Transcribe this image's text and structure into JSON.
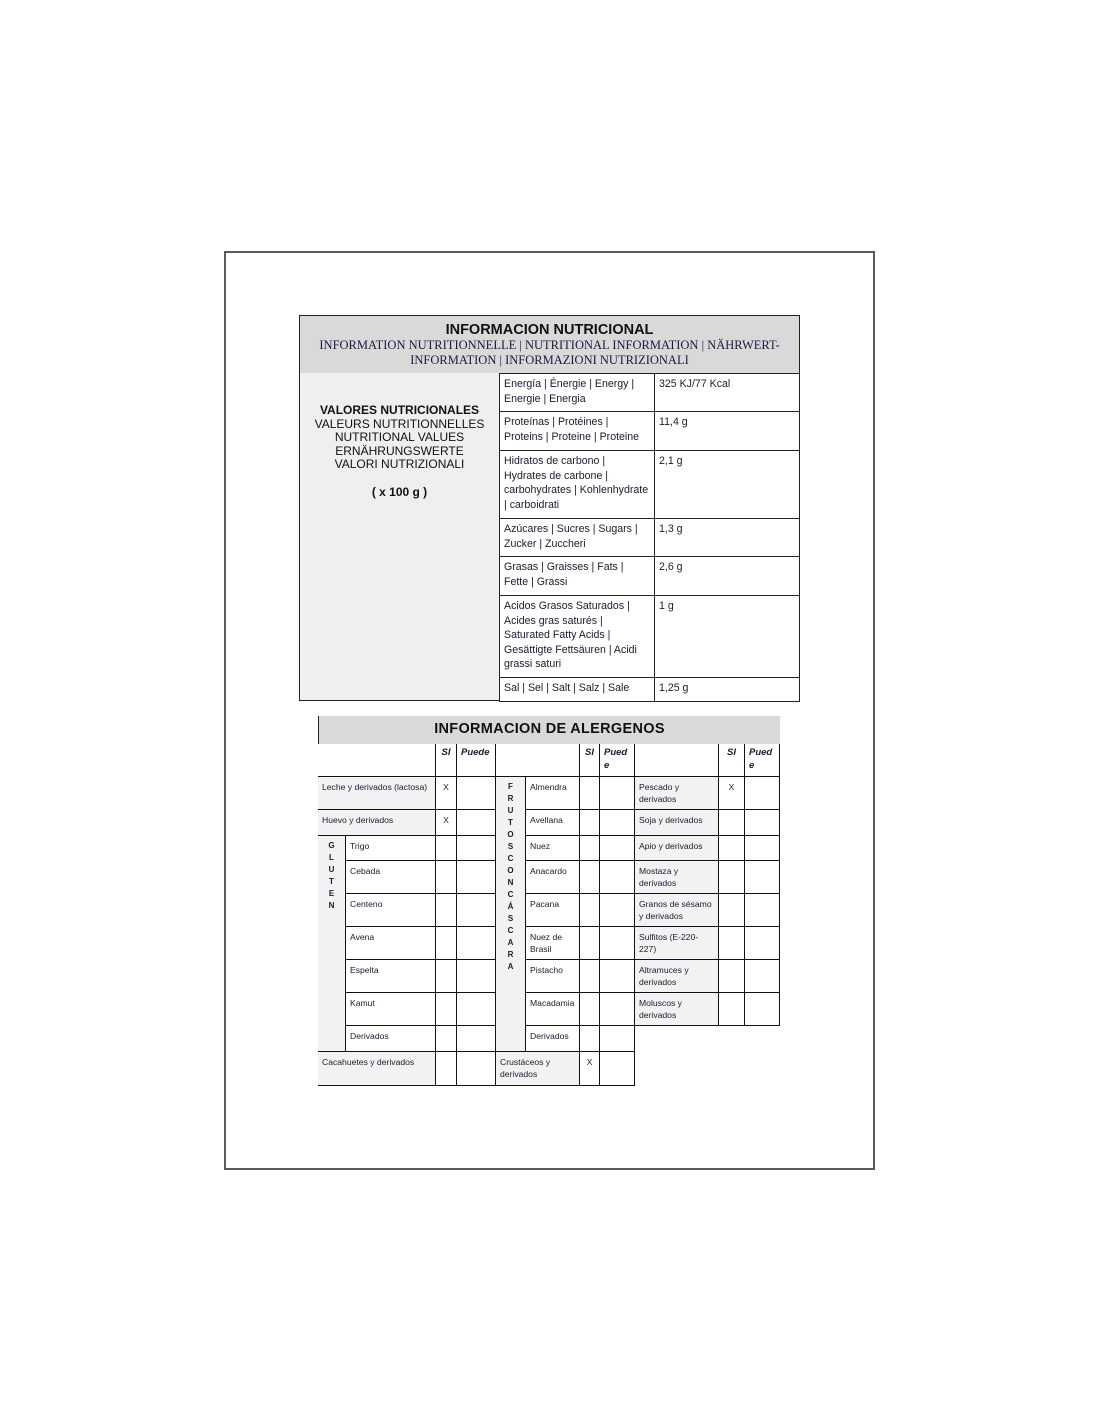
{
  "nutrition": {
    "title": "INFORMACION NUTRICIONAL",
    "subtitle": "INFORMATION NUTRITIONNELLE | NUTRITIONAL INFORMATION | NÄHRWERT-INFORMATION | INFORMAZIONI NUTRIZIONALI",
    "left_label": {
      "bold_line": "VALORES NUTRICIONALES",
      "lines": [
        "VALEURS NUTRITIONNELLES",
        "NUTRITIONAL VALUES",
        "ERNÄHRUNGSWERTE",
        "VALORI NUTRIZIONALI"
      ],
      "per": "( x 100 g )"
    },
    "rows": [
      {
        "label": "Energía | Énergie | Energy | Energie | Energia",
        "value": "325 KJ/77 Kcal"
      },
      {
        "label": "Proteínas | Protéines | Proteins | Proteine | Proteine",
        "value": "11,4 g"
      },
      {
        "label": "Hidratos de carbono | Hydrates de carbone | carbohydrates | Kohlenhydrate | carboidrati",
        "value": "2,1 g"
      },
      {
        "label": "Azúcares | Sucres | Sugars | Zucker | Zuccheri",
        "value": "1,3 g"
      },
      {
        "label": "Grasas | Graisses | Fats | Fette | Grassi",
        "value": "2,6 g"
      },
      {
        "label": "Acidos Grasos Saturados | Acides gras saturés | Saturated Fatty Acids | Gesättigte Fettsäuren | Acidi grassi saturi",
        "value": "1 g"
      },
      {
        "label": "Sal | Sel | Salt | Salz | Sale",
        "value": "1,25 g"
      }
    ]
  },
  "allergens": {
    "title": "INFORMACION DE ALERGENOS",
    "headers": [
      {
        "si": "SI",
        "puede": "Puede"
      },
      {
        "si": "SI",
        "puede": "Pued\ne"
      },
      {
        "si": "SI",
        "puede": "Pued\ne"
      }
    ],
    "col_a": {
      "top": [
        {
          "label": "Leche y derivados (lactosa)",
          "si": "X",
          "puede": ""
        },
        {
          "label": "Huevo y derivados",
          "si": "X",
          "puede": ""
        }
      ],
      "group": {
        "label": "GLUTEN",
        "items": [
          {
            "label": "Trigo",
            "si": "",
            "puede": ""
          },
          {
            "label": "Cebada",
            "si": "",
            "puede": ""
          },
          {
            "label": "Centeno",
            "si": "",
            "puede": ""
          },
          {
            "label": "Avena",
            "si": "",
            "puede": ""
          },
          {
            "label": "Espelta",
            "si": "",
            "puede": ""
          },
          {
            "label": "Kamut",
            "si": "",
            "puede": ""
          },
          {
            "label": "Derivados",
            "si": "",
            "puede": ""
          }
        ]
      },
      "bottom": {
        "label": "Cacahuetes y derivados",
        "si": "",
        "puede": ""
      }
    },
    "col_b": {
      "group": {
        "label": "FRUTOS CON CÁSCARA",
        "items": [
          {
            "label": "Almendra",
            "si": "",
            "puede": ""
          },
          {
            "label": "Avellana",
            "si": "",
            "puede": ""
          },
          {
            "label": "Nuez",
            "si": "",
            "puede": ""
          },
          {
            "label": "Anacardo",
            "si": "",
            "puede": ""
          },
          {
            "label": "Pacana",
            "si": "",
            "puede": ""
          },
          {
            "label": "Nuez de Brasil",
            "si": "",
            "puede": ""
          },
          {
            "label": "Pistacho",
            "si": "",
            "puede": ""
          },
          {
            "label": "Macadamia",
            "si": "",
            "puede": ""
          },
          {
            "label": "Derivados",
            "si": "",
            "puede": ""
          }
        ]
      },
      "bottom": {
        "label": "Crustáceos y derivados",
        "si": "X",
        "puede": ""
      }
    },
    "col_c": [
      {
        "label": "Pescado y derivados",
        "si": "X",
        "puede": ""
      },
      {
        "label": "Soja y derivados",
        "si": "",
        "puede": ""
      },
      {
        "label": "Apio y derivados",
        "si": "",
        "puede": ""
      },
      {
        "label": "Mostaza y derivados",
        "si": "",
        "puede": ""
      },
      {
        "label": "Granos de sésamo y derivados",
        "si": "",
        "puede": ""
      },
      {
        "label": "Sulfitos (E-220-227)",
        "si": "",
        "puede": ""
      },
      {
        "label": "Altramuces y derivados",
        "si": "",
        "puede": ""
      },
      {
        "label": "Moluscos y derivados",
        "si": "",
        "puede": ""
      }
    ]
  }
}
